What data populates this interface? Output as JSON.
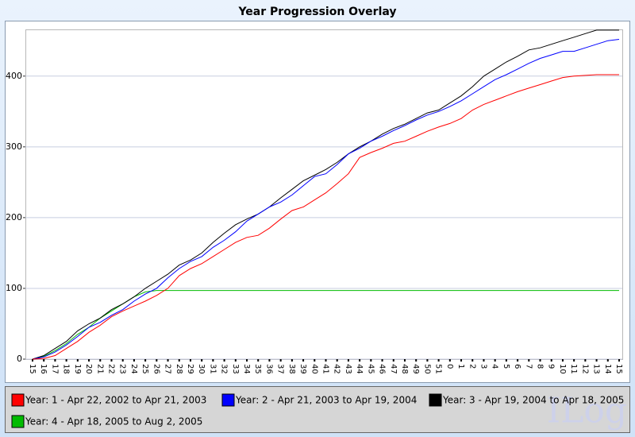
{
  "chart_data": {
    "type": "line",
    "title": "Year Progression Overlay",
    "watermark": "ILog",
    "categories": [
      "15",
      "16",
      "17",
      "18",
      "19",
      "20",
      "21",
      "22",
      "23",
      "24",
      "25",
      "26",
      "27",
      "28",
      "29",
      "30",
      "31",
      "32",
      "33",
      "34",
      "35",
      "36",
      "37",
      "38",
      "39",
      "40",
      "41",
      "42",
      "43",
      "44",
      "45",
      "46",
      "47",
      "48",
      "49",
      "50",
      "51",
      "0",
      "1",
      "2",
      "3",
      "4",
      "5",
      "6",
      "7",
      "8",
      "9",
      "10",
      "11",
      "12",
      "13",
      "14",
      "15"
    ],
    "ylim": [
      0,
      466
    ],
    "yticks": [
      0,
      100,
      200,
      300,
      400
    ],
    "grid": true,
    "series": [
      {
        "name": "Year: 1 - Apr 22, 2002 to Apr 21, 2003",
        "color": "#ff0000",
        "values": [
          0,
          1,
          5,
          15,
          25,
          38,
          48,
          60,
          68,
          75,
          82,
          90,
          100,
          118,
          128,
          135,
          145,
          155,
          165,
          172,
          175,
          185,
          198,
          210,
          215,
          225,
          235,
          248,
          262,
          285,
          292,
          298,
          305,
          308,
          315,
          322,
          328,
          333,
          340,
          352,
          360,
          366,
          372,
          378,
          383,
          388,
          393,
          398,
          400,
          401,
          402,
          402,
          402
        ]
      },
      {
        "name": "Year: 2 - Apr 21, 2003 to Apr 19, 2004",
        "color": "#0000ff",
        "values": [
          0,
          3,
          10,
          20,
          32,
          45,
          52,
          62,
          70,
          82,
          92,
          100,
          115,
          128,
          138,
          145,
          158,
          168,
          180,
          195,
          205,
          215,
          222,
          232,
          245,
          258,
          262,
          275,
          290,
          298,
          308,
          315,
          323,
          330,
          338,
          345,
          350,
          357,
          365,
          375,
          385,
          395,
          402,
          410,
          418,
          425,
          430,
          435,
          435,
          440,
          445,
          450,
          452
        ]
      },
      {
        "name": "Year: 3 - Apr 19, 2004 to Apr 18, 2005",
        "color": "#000000",
        "values": [
          0,
          5,
          15,
          25,
          40,
          50,
          58,
          70,
          78,
          88,
          100,
          110,
          120,
          133,
          140,
          150,
          165,
          178,
          190,
          198,
          205,
          215,
          228,
          240,
          252,
          260,
          268,
          278,
          290,
          300,
          308,
          318,
          326,
          332,
          340,
          348,
          352,
          362,
          372,
          385,
          400,
          410,
          420,
          428,
          437,
          440,
          445,
          450,
          455,
          460,
          465,
          465,
          465
        ]
      },
      {
        "name": "Year: 4 - Apr 18, 2005 to Aug 2, 2005",
        "color": "#00bb00",
        "values": [
          0,
          4,
          12,
          22,
          35,
          45,
          58,
          68,
          78,
          88,
          95,
          97,
          97,
          97,
          97,
          97,
          97,
          97,
          97,
          97,
          97,
          97,
          97,
          97,
          97,
          97,
          97,
          97,
          97,
          97,
          97,
          97,
          97,
          97,
          97,
          97,
          97,
          97,
          97,
          97,
          97,
          97,
          97,
          97,
          97,
          97,
          97,
          97,
          97,
          97,
          97,
          97,
          97
        ]
      }
    ]
  }
}
